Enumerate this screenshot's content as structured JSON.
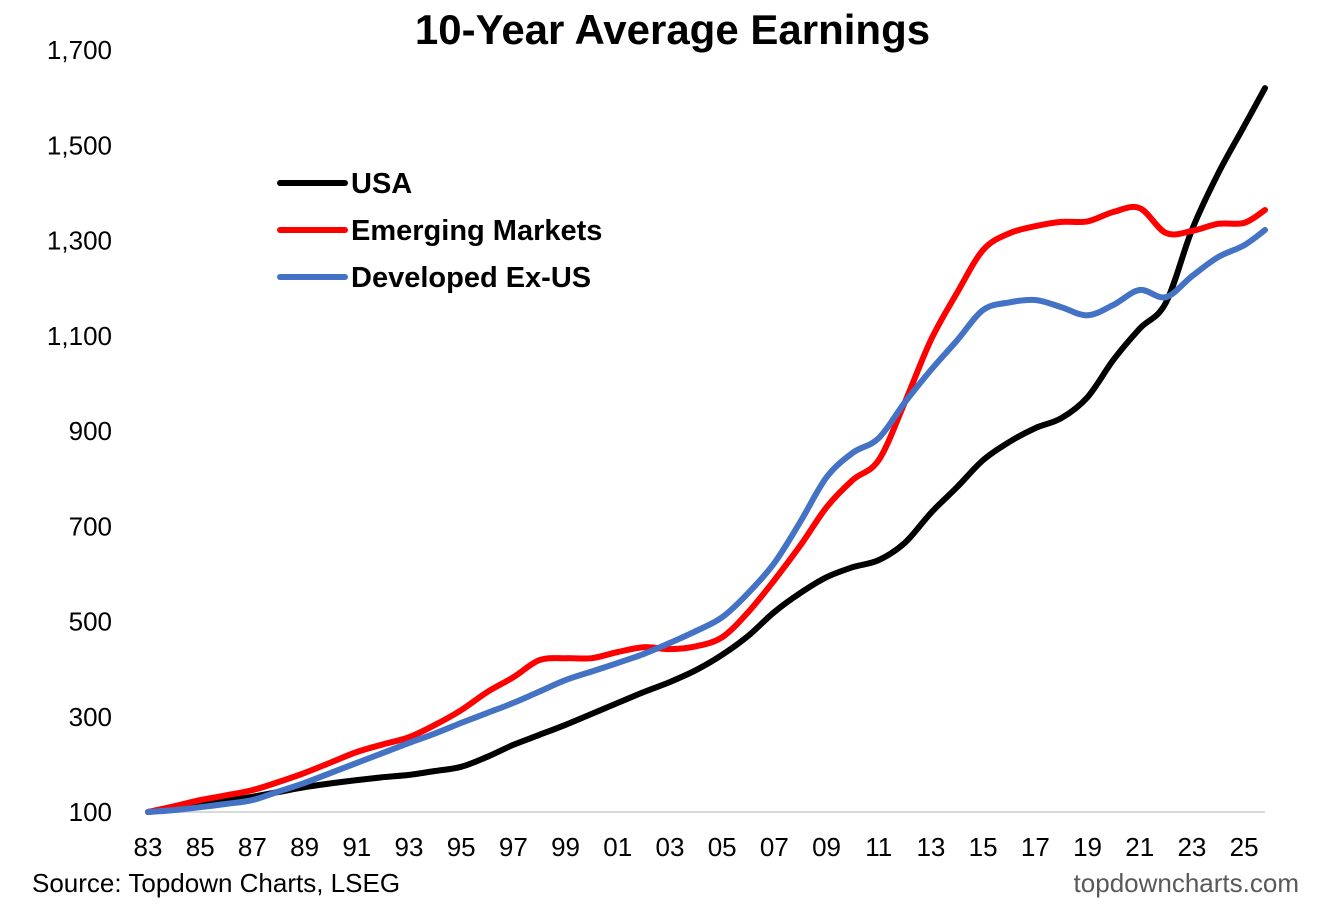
{
  "chart_data": {
    "type": "line",
    "title": "10-Year Average Earnings",
    "xlabel": "",
    "ylabel": "",
    "ylim": [
      100,
      1700
    ],
    "xlim": [
      1983,
      2025.8
    ],
    "y_ticks": [
      100,
      300,
      500,
      700,
      900,
      1100,
      1300,
      1500,
      1700
    ],
    "y_tick_labels": [
      "100",
      "300",
      "500",
      "700",
      "900",
      "1,100",
      "1,300",
      "1,500",
      "1,700"
    ],
    "x_ticks": [
      1983,
      1985,
      1987,
      1989,
      1991,
      1993,
      1995,
      1997,
      1999,
      2001,
      2003,
      2005,
      2007,
      2009,
      2011,
      2013,
      2015,
      2017,
      2019,
      2021,
      2023,
      2025
    ],
    "x_tick_labels": [
      "83",
      "85",
      "87",
      "89",
      "91",
      "93",
      "95",
      "97",
      "99",
      "01",
      "03",
      "05",
      "07",
      "09",
      "11",
      "13",
      "15",
      "17",
      "19",
      "21",
      "23",
      "25"
    ],
    "grid": false,
    "legend_position": "top-left",
    "x": [
      1983,
      1984,
      1985,
      1986,
      1987,
      1988,
      1989,
      1990,
      1991,
      1992,
      1993,
      1994,
      1995,
      1996,
      1997,
      1998,
      1999,
      2000,
      2001,
      2002,
      2003,
      2004,
      2005,
      2006,
      2007,
      2008,
      2009,
      2010,
      2011,
      2012,
      2013,
      2014,
      2015,
      2016,
      2017,
      2018,
      2019,
      2020,
      2021,
      2022,
      2023,
      2024,
      2025,
      2025.8
    ],
    "series": [
      {
        "name": "USA",
        "color": "#000000",
        "values": [
          100,
          108,
          117,
          124,
          132,
          142,
          152,
          160,
          167,
          173,
          178,
          186,
          195,
          216,
          241,
          262,
          283,
          306,
          329,
          352,
          373,
          398,
          430,
          470,
          520,
          560,
          593,
          614,
          629,
          665,
          728,
          782,
          839,
          877,
          906,
          927,
          971,
          1050,
          1115,
          1169,
          1322,
          1440,
          1540,
          1620
        ]
      },
      {
        "name": "Emerging Markets",
        "color": "#FF0000",
        "values": [
          100,
          112,
          125,
          135,
          146,
          163,
          182,
          204,
          226,
          242,
          257,
          283,
          314,
          352,
          383,
          419,
          423,
          423,
          436,
          446,
          442,
          448,
          467,
          520,
          587,
          660,
          740,
          797,
          839,
          960,
          1091,
          1190,
          1280,
          1315,
          1330,
          1339,
          1340,
          1360,
          1368,
          1316,
          1320,
          1335,
          1337,
          1364
        ]
      },
      {
        "name": "Developed Ex-US",
        "color": "#4472C4",
        "values": [
          100,
          104,
          110,
          117,
          125,
          143,
          161,
          182,
          203,
          224,
          245,
          265,
          287,
          308,
          329,
          353,
          377,
          395,
          413,
          432,
          455,
          480,
          509,
          560,
          623,
          710,
          803,
          854,
          885,
          960,
          1028,
          1090,
          1154,
          1170,
          1175,
          1160,
          1143,
          1165,
          1196,
          1181,
          1225,
          1265,
          1290,
          1322
        ]
      }
    ]
  },
  "footer": {
    "source": "Source: Topdown Charts, LSEG",
    "watermark": "topdowncharts.com"
  }
}
